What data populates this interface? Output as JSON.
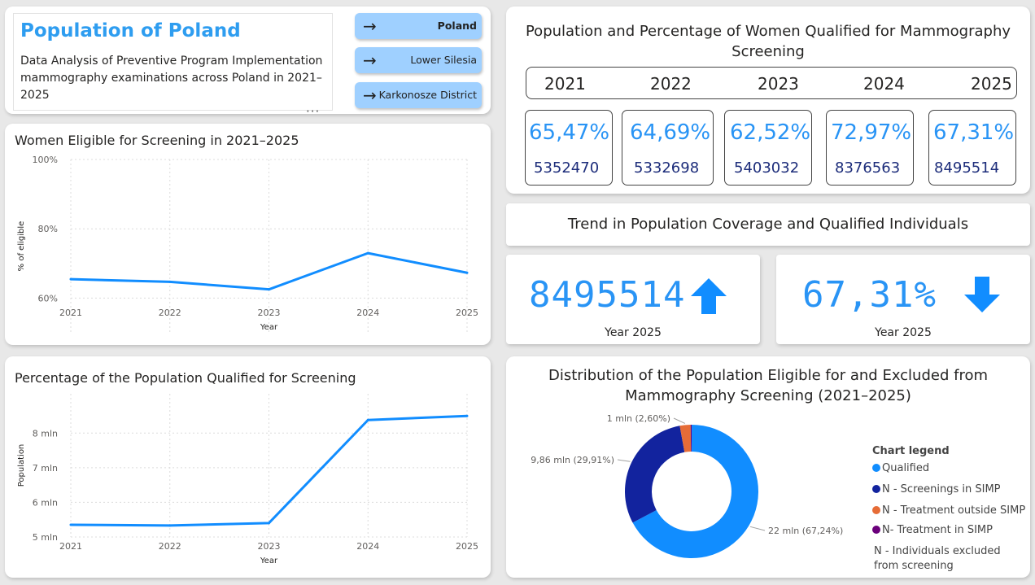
{
  "header": {
    "title": "Population of Poland",
    "subtitle": "Data Analysis of Preventive Program Implementation mammography examinations across Poland in 2021–2025",
    "more_label": "···"
  },
  "nav": {
    "buttons": [
      {
        "label": "Poland",
        "icon": "arrow-right-icon"
      },
      {
        "label": "Lower Silesia",
        "icon": "arrow-right-icon"
      },
      {
        "label": "Karkonosze District",
        "icon": "arrow-right-icon"
      }
    ]
  },
  "kpi_table": {
    "title": "Population and Percentage of Women Qualified for Mammography Screening",
    "years": [
      "2021",
      "2022",
      "2023",
      "2024",
      "2025"
    ],
    "items": [
      {
        "pct": "65,47%",
        "count": "5352470"
      },
      {
        "pct": "64,69%",
        "count": "5332698"
      },
      {
        "pct": "62,52%",
        "count": "5403032"
      },
      {
        "pct": "72,97%",
        "count": "8376563"
      },
      {
        "pct": "67,31%",
        "count": "8495514"
      }
    ]
  },
  "trend": {
    "title": "Trend in Population Coverage and Qualified Individuals",
    "population": {
      "value": "8495514",
      "caption": "Year 2025",
      "direction": "up",
      "icon": "arrow-up-icon"
    },
    "percentage": {
      "value": "67,31%",
      "caption": "Year 2025",
      "direction": "down",
      "icon": "arrow-down-icon"
    }
  },
  "colors": {
    "accent": "#2994f5",
    "title_blue": "#2e9df0",
    "nav_button": "#9fd0ff",
    "qualified": "#118dff",
    "screenings_simp": "#12239e",
    "treatment_outside": "#e66c37",
    "treatment_in": "#6b007b"
  },
  "chart_data": [
    {
      "type": "line",
      "title": "Women Eligible for Screening in 2021–2025",
      "xlabel": "Year",
      "ylabel": "% of eligible",
      "x": [
        "2021",
        "2022",
        "2023",
        "2024",
        "2025"
      ],
      "values": [
        65.47,
        64.69,
        62.52,
        72.97,
        67.31
      ],
      "ylim": [
        50,
        100
      ],
      "yticks": [
        "100%",
        "80%",
        "60%"
      ],
      "ytick_values": [
        100,
        80,
        60
      ],
      "grid": true
    },
    {
      "type": "line",
      "title": "Percentage of the Population Qualified for Screening",
      "xlabel": "Year",
      "ylabel": "Population",
      "x": [
        "2021",
        "2022",
        "2023",
        "2024",
        "2025"
      ],
      "values": [
        5352470,
        5332698,
        5403032,
        8376563,
        8495514
      ],
      "ylim": [
        5000000,
        8500000
      ],
      "yticks": [
        "8 mln",
        "7 mln",
        "6 mln",
        "5 mln"
      ],
      "ytick_values": [
        8000000,
        7000000,
        6000000,
        5000000
      ],
      "grid": true
    },
    {
      "type": "pie",
      "title": "Distribution of the Population Eligible for and Excluded from Mammography Screening (2021–2025)",
      "legend_title": "Chart legend",
      "legend_position": "right",
      "slices": [
        {
          "name": "Qualified",
          "value": 67.24,
          "label": "22 mln (67,24%)",
          "color": "#118dff"
        },
        {
          "name": "N - Screenings in SIMP",
          "value": 29.91,
          "label": "9,86 mln (29,91%)",
          "color": "#12239e"
        },
        {
          "name": "N - Treatment outside SIMP",
          "value": 2.6,
          "label": "1 mln (2,60%)",
          "color": "#e66c37"
        },
        {
          "name": "N- Treatment in SIMP",
          "value": 0.25,
          "label": "",
          "color": "#6b007b"
        }
      ],
      "legend_extra": "N - Individuals excluded from screening"
    }
  ]
}
